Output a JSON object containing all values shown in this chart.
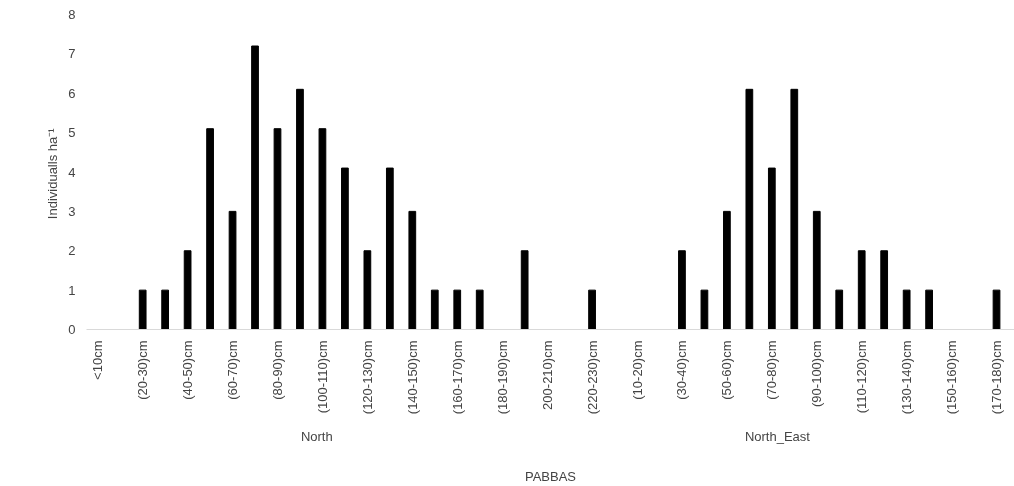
{
  "chart_data": {
    "type": "bar",
    "xlabel": "PABBAS",
    "ylabel": "Individualls  ha⁻¹",
    "categories": [
      "<10cm",
      null,
      "(20-30)cm",
      null,
      "(40-50)cm",
      null,
      "(60-70)cm",
      null,
      "(80-90)cm",
      null,
      "(100-110)cm",
      null,
      "(120-130)cm",
      null,
      "(140-150)cm",
      null,
      "(160-170)cm",
      null,
      "(180-190)cm",
      null,
      "200-210)cm",
      null,
      "(220-230)cm",
      null,
      "(10-20)cm",
      null,
      "(30-40)cm",
      null,
      "(50-60)cm",
      null,
      "(70-80)cm",
      null,
      "(90-100)cm",
      null,
      "(110-120)cm",
      null,
      "(130-140)cm",
      null,
      "(150-160)cm",
      null,
      "(170-180)cm"
    ],
    "series": [
      {
        "color": "#000000",
        "values": [
          null,
          null,
          1,
          1,
          2,
          5.1,
          3,
          7.2,
          5.1,
          6.1,
          5.1,
          4.1,
          2,
          4.1,
          3,
          1,
          1,
          1,
          null,
          2,
          null,
          null,
          1,
          null,
          null,
          null,
          2,
          1,
          3,
          6.1,
          4.1,
          6.1,
          3,
          1,
          2,
          2,
          1,
          1,
          null,
          null,
          1
        ]
      }
    ],
    "ylim": [
      0,
      8
    ],
    "yticks": [
      0,
      1,
      2,
      3,
      4,
      5,
      6,
      7,
      8
    ],
    "grid": false,
    "annotations": [
      "North",
      "North_East"
    ]
  }
}
